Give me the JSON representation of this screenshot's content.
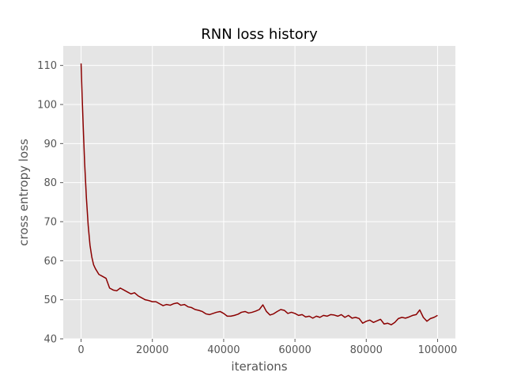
{
  "chart_data": {
    "type": "line",
    "title": "RNN loss history",
    "xlabel": "iterations",
    "ylabel": "cross entropy loss",
    "xlim": [
      -5000,
      105000
    ],
    "ylim": [
      40,
      115
    ],
    "grid": true,
    "legend": "none",
    "xticks": [
      0,
      20000,
      40000,
      60000,
      80000,
      100000
    ],
    "xtick_labels": [
      "0",
      "20000",
      "40000",
      "60000",
      "80000",
      "100000"
    ],
    "yticks": [
      40,
      50,
      60,
      70,
      80,
      90,
      100,
      110
    ],
    "ytick_labels": [
      "40",
      "50",
      "60",
      "70",
      "80",
      "90",
      "100",
      "110"
    ],
    "colors": {
      "line": "#8b0000",
      "plot_background": "#e5e5e5",
      "grid": "#ffffff"
    },
    "series": [
      {
        "x": [
          0,
          300,
          700,
          1000,
          1500,
          2000,
          2500,
          3000,
          3500,
          4000,
          5000,
          6000,
          7000,
          8000,
          9000,
          10000,
          11000,
          12000,
          13000,
          14000,
          15000,
          16000,
          17000,
          18000,
          19000,
          20000,
          21000,
          22000,
          23000,
          24000,
          25000,
          26000,
          27000,
          28000,
          29000,
          30000,
          31000,
          32000,
          33000,
          34000,
          35000,
          36000,
          37000,
          38000,
          39000,
          40000,
          41000,
          42000,
          43000,
          44000,
          45000,
          46000,
          47000,
          48000,
          49000,
          50000,
          51000,
          52000,
          53000,
          54000,
          55000,
          56000,
          57000,
          58000,
          59000,
          60000,
          61000,
          62000,
          63000,
          64000,
          65000,
          66000,
          67000,
          68000,
          69000,
          70000,
          71000,
          72000,
          73000,
          74000,
          75000,
          76000,
          77000,
          78000,
          79000,
          80000,
          81000,
          82000,
          83000,
          84000,
          85000,
          86000,
          87000,
          88000,
          89000,
          90000,
          91000,
          92000,
          93000,
          94000,
          95000,
          96000,
          97000,
          98000,
          99000,
          100000
        ],
        "y": [
          110.5,
          102,
          92,
          85,
          76,
          69,
          64,
          61,
          59,
          58,
          56.5,
          56,
          55.5,
          53,
          52.5,
          52.3,
          53,
          52.5,
          52,
          51.5,
          51.8,
          51,
          50.5,
          50,
          49.8,
          49.5,
          49.5,
          49,
          48.5,
          48.8,
          48.6,
          49,
          49.2,
          48.6,
          48.8,
          48.2,
          48,
          47.5,
          47.3,
          47,
          46.4,
          46.2,
          46.5,
          46.8,
          47,
          46.5,
          45.8,
          45.8,
          46,
          46.3,
          46.8,
          47,
          46.6,
          46.8,
          47.1,
          47.5,
          48.7,
          47,
          46.1,
          46.4,
          47,
          47.5,
          47.3,
          46.5,
          46.8,
          46.5,
          46,
          46.2,
          45.6,
          45.8,
          45.3,
          45.8,
          45.5,
          46,
          45.8,
          46.2,
          46.1,
          45.8,
          46.2,
          45.5,
          46,
          45.3,
          45.5,
          45.2,
          44,
          44.5,
          44.8,
          44.2,
          44.6,
          45,
          43.8,
          44,
          43.6,
          44.2,
          45.2,
          45.5,
          45.3,
          45.6,
          46,
          46.2,
          47.4,
          45.5,
          44.5,
          45.2,
          45.5,
          46
        ]
      }
    ]
  }
}
